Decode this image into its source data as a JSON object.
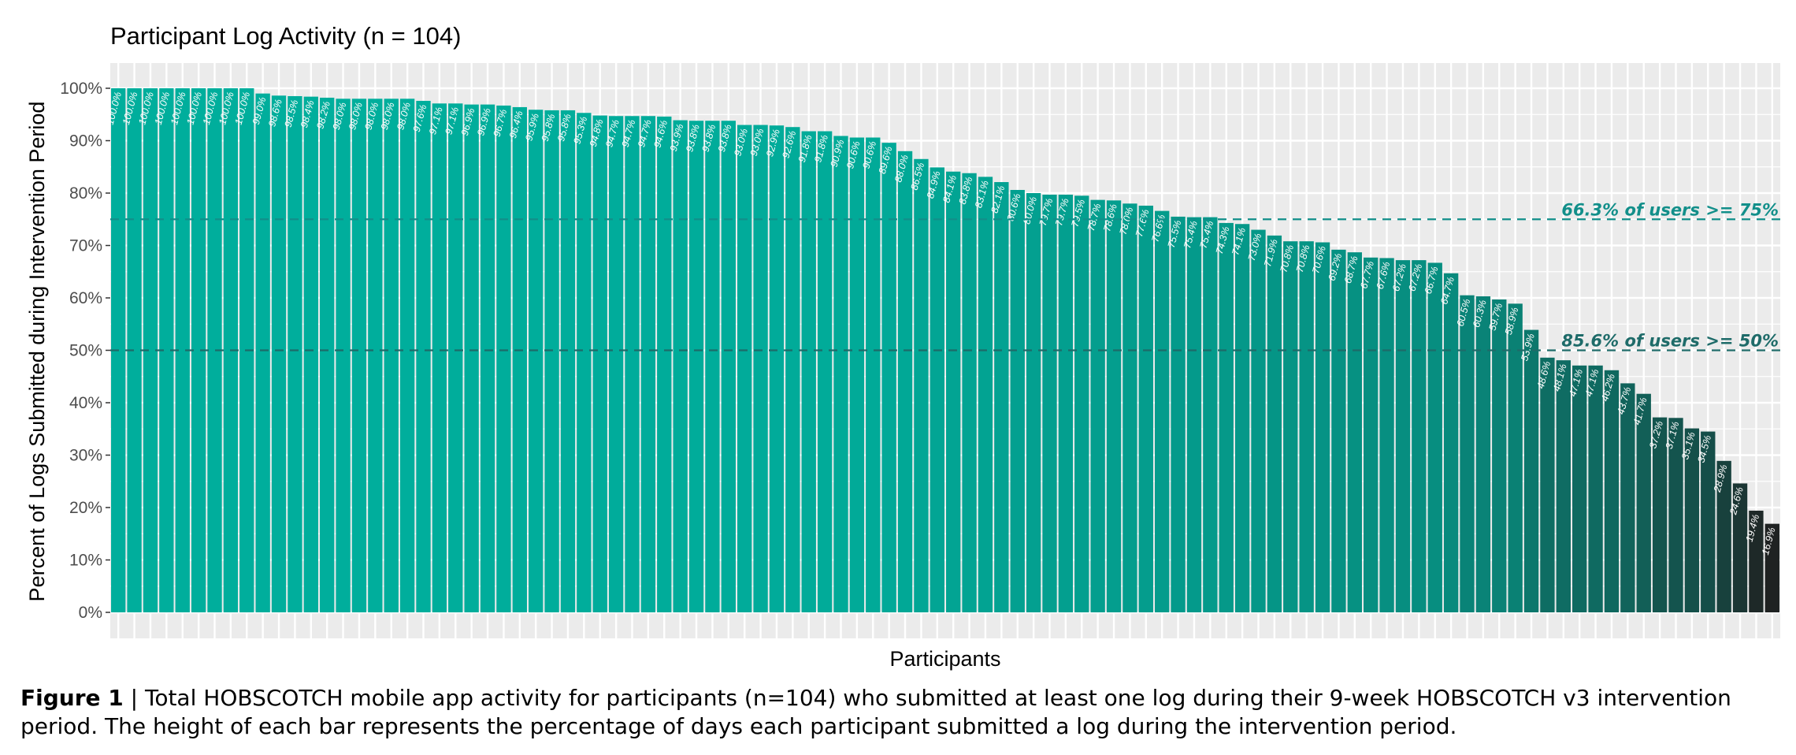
{
  "chart_data": {
    "type": "bar",
    "title": "Participant Log Activity (n = 104)",
    "xlabel": "Participants",
    "ylabel": "Percent of Logs Submitted during Intervention Period",
    "ylim": [
      0,
      100
    ],
    "y_ticks": [
      0,
      10,
      20,
      30,
      40,
      50,
      60,
      70,
      80,
      90,
      100
    ],
    "y_tick_labels": [
      "0%",
      "10%",
      "20%",
      "30%",
      "40%",
      "50%",
      "60%",
      "70%",
      "80%",
      "90%",
      "100%"
    ],
    "grid": true,
    "value_label_suffix": "%",
    "values": [
      100.0,
      100.0,
      100.0,
      100.0,
      100.0,
      100.0,
      100.0,
      100.0,
      100.0,
      99.0,
      98.6,
      98.5,
      98.4,
      98.2,
      98.0,
      98.0,
      98.0,
      98.0,
      98.0,
      97.6,
      97.1,
      97.1,
      96.9,
      96.9,
      96.7,
      96.4,
      95.9,
      95.8,
      95.8,
      95.3,
      94.8,
      94.7,
      94.7,
      94.7,
      94.6,
      93.9,
      93.8,
      93.8,
      93.8,
      93.0,
      93.0,
      92.9,
      92.6,
      91.8,
      91.8,
      90.9,
      90.6,
      90.6,
      89.6,
      88.0,
      86.5,
      84.9,
      84.1,
      83.8,
      83.1,
      82.1,
      80.6,
      80.0,
      79.7,
      79.7,
      79.5,
      78.7,
      78.6,
      78.0,
      77.6,
      76.6,
      75.5,
      75.4,
      75.4,
      74.3,
      74.1,
      73.0,
      71.9,
      70.8,
      70.8,
      70.6,
      69.2,
      68.7,
      67.7,
      67.6,
      67.2,
      67.2,
      66.7,
      64.7,
      60.5,
      60.3,
      59.7,
      58.9,
      53.9,
      48.6,
      48.1,
      47.1,
      47.1,
      46.2,
      43.7,
      41.7,
      37.2,
      37.1,
      35.1,
      34.5,
      28.9,
      24.6,
      19.4,
      16.9
    ],
    "reference_lines": [
      {
        "y": 75,
        "label": "66.3% of users >= 75%",
        "color": "#128f8a"
      },
      {
        "y": 50,
        "label": "85.6% of users >= 50%",
        "color": "#1e6b69"
      }
    ],
    "colors": {
      "bar_high": "#00ae9c",
      "bar_low": "#1f2222",
      "panel_bg": "#ebebeb",
      "grid": "#ffffff",
      "tick_text": "#4d4d4d"
    }
  },
  "caption": {
    "figure_label": "Figure 1",
    "text": " | Total HOBSCOTCH mobile app activity for participants (n=104) who submitted at least one log during their 9-week HOBSCOTCH v3 intervention period. The height of each bar represents the percentage of days each participant submitted a log during the intervention period."
  }
}
